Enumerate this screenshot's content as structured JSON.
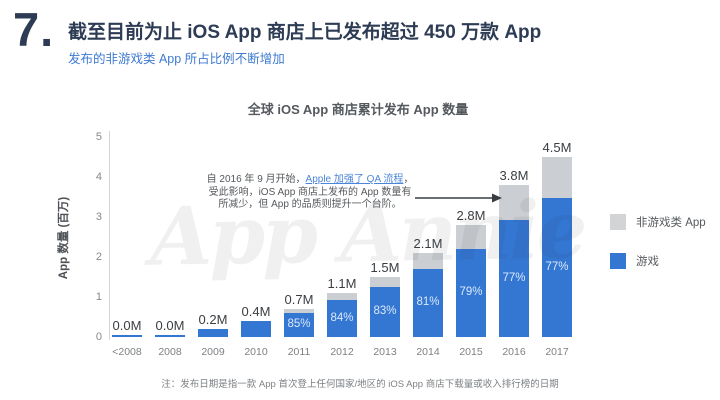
{
  "slide": {
    "number": "7.",
    "title": "截至目前为止 iOS App 商店上已发布超过 450 万款 App",
    "subtitle": "发布的非游戏类 App 所占比例不断增加"
  },
  "chart": {
    "title": "全球 iOS App 商店累计发布 App 数量",
    "y_axis_label": "App 数量 (百万)",
    "watermark": "App Annie",
    "note": "注：发布日期是指一款 App 首次登上任何国家/地区的 iOS App 商店下载量或收入排行榜的日期",
    "annotation": {
      "line1_pre": "自 2016 年 9 月开始，",
      "link": "Apple 加强了 QA 流程",
      "line1_post": "，",
      "line2": "受此影响，iOS App 商店上发布的 App 数量有",
      "line3": "所减少，但 App 的品质则提升一个台阶。"
    },
    "legend": [
      {
        "label": "非游戏类 App",
        "color": "#d2d4d6"
      },
      {
        "label": "游戏",
        "color": "#3377d3"
      }
    ]
  },
  "chart_data": {
    "type": "bar",
    "stacked": true,
    "title": "全球 iOS App 商店累计发布 App 数量",
    "xlabel": "",
    "ylabel": "App 数量 (百万)",
    "ylim": [
      0,
      5
    ],
    "yticks": [
      0,
      1,
      2,
      3,
      4,
      5
    ],
    "grid": false,
    "legend_position": "right",
    "categories": [
      "<2008",
      "2008",
      "2009",
      "2010",
      "2011",
      "2012",
      "2013",
      "2014",
      "2015",
      "2016",
      "2017"
    ],
    "totals": [
      0.02,
      0.03,
      0.2,
      0.4,
      0.7,
      1.1,
      1.5,
      2.1,
      2.8,
      3.8,
      4.5
    ],
    "total_labels": [
      "0.0M",
      "0.0M",
      "0.2M",
      "0.4M",
      "0.7M",
      "1.1M",
      "1.5M",
      "2.1M",
      "2.8M",
      "3.8M",
      "4.5M"
    ],
    "game_pct_labels": [
      null,
      null,
      null,
      null,
      "85%",
      "84%",
      "83%",
      "81%",
      "79%",
      "77%",
      "77%"
    ],
    "series": [
      {
        "name": "游戏",
        "color": "#3377d3",
        "values": [
          0.02,
          0.03,
          0.2,
          0.4,
          0.6,
          0.92,
          1.25,
          1.7,
          2.21,
          2.93,
          3.47
        ]
      },
      {
        "name": "非游戏类 App",
        "color": "#cbced2",
        "values": [
          0,
          0,
          0,
          0,
          0.1,
          0.18,
          0.25,
          0.4,
          0.59,
          0.87,
          1.03
        ]
      }
    ]
  },
  "colors": {
    "game_blue": "#3377d3",
    "nongame_gray": "#cbced2",
    "title_navy": "#2d3c54",
    "subtitle_blue": "#3e7ad2",
    "link_blue": "#4a86d8",
    "label_dark": "#3a3e42",
    "axis_gray": "#85898c",
    "note_gray": "#7c8084"
  }
}
